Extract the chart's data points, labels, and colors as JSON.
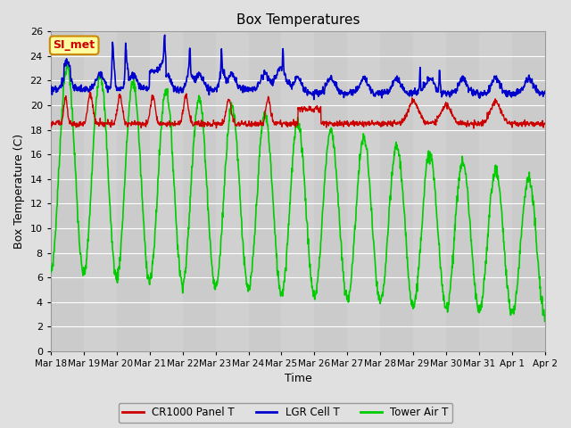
{
  "title": "Box Temperatures",
  "xlabel": "Time",
  "ylabel": "Box Temperature (C)",
  "ylim": [
    0,
    26
  ],
  "yticks": [
    0,
    2,
    4,
    6,
    8,
    10,
    12,
    14,
    16,
    18,
    20,
    22,
    24,
    26
  ],
  "x_labels": [
    "Mar 18",
    "Mar 19",
    "Mar 20",
    "Mar 21",
    "Mar 22",
    "Mar 23",
    "Mar 24",
    "Mar 25",
    "Mar 26",
    "Mar 27",
    "Mar 28",
    "Mar 29",
    "Mar 30",
    "Mar 31",
    "Apr 1",
    "Apr 2"
  ],
  "background_color": "#e0e0e0",
  "plot_bg_color": "#d0d0d0",
  "grid_color": "#ffffff",
  "legend_labels": [
    "CR1000 Panel T",
    "LGR Cell T",
    "Tower Air T"
  ],
  "legend_colors": [
    "#cc0000",
    "#0000cc",
    "#00cc00"
  ],
  "annotation_text": "SI_met",
  "annotation_bg": "#ffffa0",
  "annotation_border": "#cc8800",
  "annotation_text_color": "#cc0000",
  "line_colors": {
    "cr1000": "#cc0000",
    "lgr": "#0000cc",
    "tower": "#00cc00"
  },
  "line_widths": {
    "cr1000": 1.0,
    "lgr": 1.2,
    "tower": 1.2
  },
  "figsize": [
    6.4,
    4.8
  ],
  "dpi": 100
}
